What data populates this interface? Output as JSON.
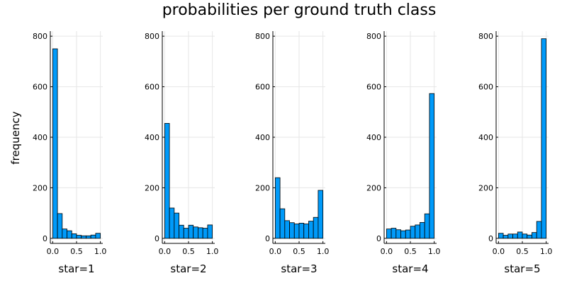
{
  "chart_data": {
    "type": "bar",
    "title": "probabilities per ground truth class",
    "ylabel": "frequency",
    "bins": [
      0.0,
      0.1,
      0.2,
      0.3,
      0.4,
      0.5,
      0.6,
      0.7,
      0.8,
      0.9,
      1.0
    ],
    "xticks": [
      "0.0",
      "0.5",
      "1.0"
    ],
    "yticks": [
      "0",
      "200",
      "400",
      "600",
      "800"
    ],
    "xlim": [
      -0.05,
      1.05
    ],
    "ylim": [
      -20,
      820
    ],
    "grid": true,
    "legend": "none",
    "panels": [
      {
        "xlabel": "star=1",
        "values": [
          750,
          98,
          37,
          30,
          18,
          12,
          10,
          10,
          13,
          20
        ]
      },
      {
        "xlabel": "star=2",
        "values": [
          455,
          120,
          100,
          52,
          40,
          52,
          45,
          42,
          40,
          53
        ]
      },
      {
        "xlabel": "star=3",
        "values": [
          240,
          117,
          70,
          62,
          57,
          60,
          57,
          68,
          83,
          190
        ]
      },
      {
        "xlabel": "star=4",
        "values": [
          37,
          40,
          34,
          30,
          33,
          48,
          53,
          63,
          97,
          573
        ]
      },
      {
        "xlabel": "star=5",
        "values": [
          20,
          12,
          17,
          17,
          25,
          17,
          13,
          23,
          67,
          790
        ]
      }
    ]
  }
}
